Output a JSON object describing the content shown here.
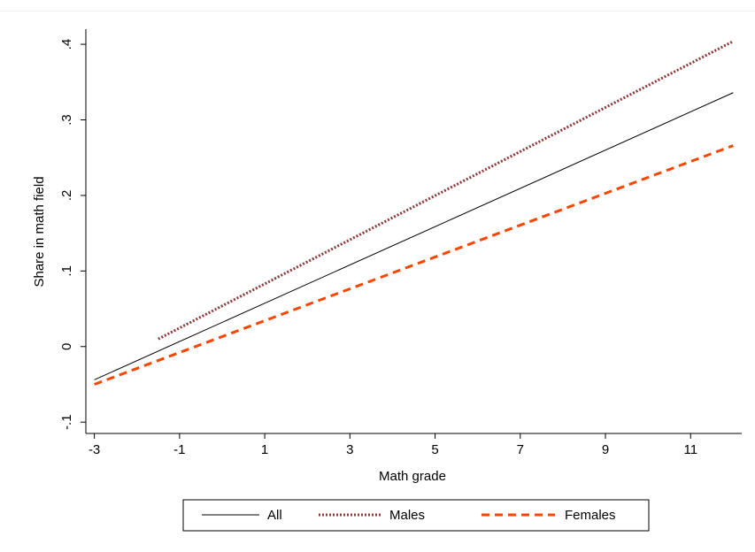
{
  "chart_data": {
    "type": "line",
    "xlabel": "Math grade",
    "ylabel": "Share in math field",
    "xlim": [
      -3.2,
      12.2
    ],
    "ylim": [
      -0.115,
      0.42
    ],
    "x_ticks": [
      -3,
      -1,
      1,
      3,
      5,
      7,
      9,
      11
    ],
    "x_tick_labels": [
      "-3",
      "-1",
      "1",
      "3",
      "5",
      "7",
      "9",
      "11"
    ],
    "y_ticks": [
      -0.1,
      0,
      0.1,
      0.2,
      0.3,
      0.4
    ],
    "y_tick_labels": [
      "-.1",
      "0",
      ".1",
      ".2",
      ".3",
      ".4"
    ],
    "grid": false,
    "legend_position": "bottom",
    "series": [
      {
        "name": "All",
        "color": "#000000",
        "style": "solid",
        "x": [
          -3,
          12
        ],
        "y": [
          -0.044,
          0.336
        ]
      },
      {
        "name": "Males",
        "color": "#8b3a3a",
        "style": "dotted",
        "x": [
          -1.5,
          12
        ],
        "y": [
          0.01,
          0.404
        ]
      },
      {
        "name": "Females",
        "color": "#ff4500",
        "style": "dashed",
        "x": [
          -3,
          12
        ],
        "y": [
          -0.05,
          0.266
        ]
      }
    ]
  }
}
